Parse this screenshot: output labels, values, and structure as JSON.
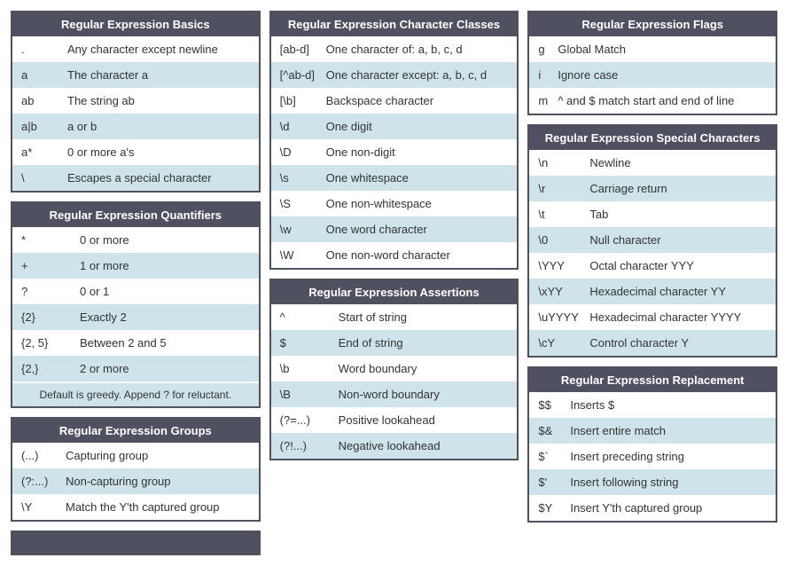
{
  "theme": {
    "header_bg": "#4f5160",
    "header_text": "#ffffff",
    "row_bg": "#ffffff",
    "row_alt_bg": "#cfe4ea",
    "border_color": "#4f5160",
    "text_color": "#333333"
  },
  "tables": {
    "basics": {
      "title": "Regular Expression Basics",
      "rows": [
        [
          ".",
          "Any character except newline"
        ],
        [
          "a",
          "The character a"
        ],
        [
          "ab",
          "The string ab"
        ],
        [
          "a|b",
          "a or b"
        ],
        [
          "a*",
          "0 or more a's"
        ],
        [
          "\\",
          "Escapes a special character"
        ]
      ]
    },
    "quantifiers": {
      "title": "Regular Expression Quantifiers",
      "rows": [
        [
          "*",
          "0 or more"
        ],
        [
          "+",
          "1 or more"
        ],
        [
          "?",
          "0 or 1"
        ],
        [
          "{2}",
          "Exactly 2"
        ],
        [
          "{2, 5}",
          "Between 2 and 5"
        ],
        [
          "{2,}",
          "2 or more"
        ]
      ],
      "note": "Default is greedy. Append ? for reluctant."
    },
    "groups": {
      "title": "Regular Expression Groups",
      "rows": [
        [
          "(...)",
          "Capturing group"
        ],
        [
          "(?:...)",
          "Non-capturing group"
        ],
        [
          "\\Y",
          "Match the Y'th captured group"
        ]
      ]
    },
    "character_classes": {
      "title": "Regular Expression Character Classes",
      "rows": [
        [
          "[ab-d]",
          "One character of: a, b, c, d"
        ],
        [
          "[^ab-d]",
          "One character except: a, b, c, d"
        ],
        [
          "[\\b]",
          "Backspace character"
        ],
        [
          "\\d",
          "One digit"
        ],
        [
          "\\D",
          "One non-digit"
        ],
        [
          "\\s",
          "One whitespace"
        ],
        [
          "\\S",
          "One non-whitespace"
        ],
        [
          "\\w",
          "One word character"
        ],
        [
          "\\W",
          "One non-word character"
        ]
      ]
    },
    "assertions": {
      "title": "Regular Expression Assertions",
      "rows": [
        [
          "^",
          "Start of string"
        ],
        [
          "$",
          "End of string"
        ],
        [
          "\\b",
          "Word boundary"
        ],
        [
          "\\B",
          "Non-word boundary"
        ],
        [
          "(?=...)",
          "Positive lookahead"
        ],
        [
          "(?!...)",
          "Negative lookahead"
        ]
      ]
    },
    "flags": {
      "title": "Regular Expression Flags",
      "rows": [
        [
          "g",
          "Global Match"
        ],
        [
          "i",
          "Ignore case"
        ],
        [
          "m",
          "^ and $ match start and end of line"
        ]
      ]
    },
    "special_characters": {
      "title": "Regular Expression Special Characters",
      "rows": [
        [
          "\\n",
          "Newline"
        ],
        [
          "\\r",
          "Carriage return"
        ],
        [
          "\\t",
          "Tab"
        ],
        [
          "\\0",
          "Null character"
        ],
        [
          "\\YYY",
          "Octal character YYY"
        ],
        [
          "\\xYY",
          "Hexadecimal character YY"
        ],
        [
          "\\uYYYY",
          "Hexadecimal character YYYY"
        ],
        [
          "\\cY",
          "Control character Y"
        ]
      ]
    },
    "replacement": {
      "title": "Regular Expression Replacement",
      "rows": [
        [
          "$$",
          "Inserts $"
        ],
        [
          "$&",
          "Insert entire match"
        ],
        [
          "$`",
          "Insert preceding string"
        ],
        [
          "$'",
          "Insert following string"
        ],
        [
          "$Y",
          "Insert Y'th captured group"
        ]
      ]
    }
  }
}
